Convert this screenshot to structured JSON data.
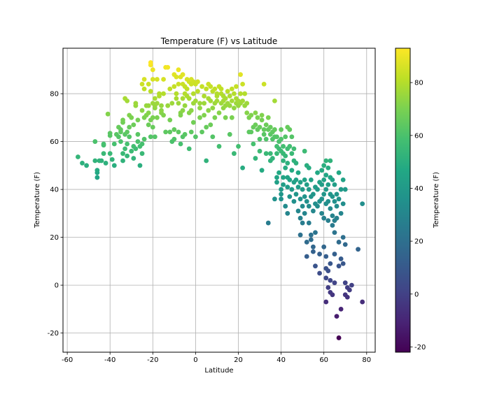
{
  "chart_data": {
    "type": "scatter",
    "title": "Temperature (F) vs Latitude",
    "xlabel": "Latitude",
    "ylabel": "Temperature (F)",
    "xlim": [
      -62,
      84
    ],
    "ylim": [
      -28,
      99
    ],
    "xticks": [
      -60,
      -40,
      -20,
      0,
      20,
      40,
      60,
      80
    ],
    "yticks": [
      -20,
      0,
      20,
      40,
      60,
      80
    ],
    "grid": true,
    "colormap": "viridis",
    "colorbar": {
      "label": "Temperature (F)",
      "range": [
        -22,
        93
      ],
      "ticks": [
        -20,
        0,
        20,
        40,
        60,
        80
      ]
    },
    "points": [
      [
        -55,
        53.6
      ],
      [
        -53,
        51
      ],
      [
        -51,
        50
      ],
      [
        -47,
        60
      ],
      [
        -47,
        52
      ],
      [
        -46,
        47
      ],
      [
        -46,
        45
      ],
      [
        -46,
        48
      ],
      [
        -45,
        52
      ],
      [
        -44,
        52
      ],
      [
        -43,
        55
      ],
      [
        -43,
        58.5
      ],
      [
        -43,
        59
      ],
      [
        -42,
        51
      ],
      [
        -41,
        71.5
      ],
      [
        -40,
        63.5
      ],
      [
        -40,
        62.5
      ],
      [
        -40,
        55
      ],
      [
        -39,
        52.5
      ],
      [
        -38,
        50
      ],
      [
        -38,
        59
      ],
      [
        -37,
        63
      ],
      [
        -36,
        62
      ],
      [
        -36,
        66
      ],
      [
        -35,
        65
      ],
      [
        -35,
        60
      ],
      [
        -35,
        64
      ],
      [
        -34,
        68
      ],
      [
        -34,
        69
      ],
      [
        -34,
        55
      ],
      [
        -34,
        52
      ],
      [
        -33,
        78
      ],
      [
        -33,
        57
      ],
      [
        -33,
        63
      ],
      [
        -32,
        64
      ],
      [
        -32,
        59
      ],
      [
        -32,
        54
      ],
      [
        -32,
        77
      ],
      [
        -31,
        66
      ],
      [
        -31,
        71
      ],
      [
        -31,
        62
      ],
      [
        -30,
        56
      ],
      [
        -30,
        70
      ],
      [
        -29,
        67
      ],
      [
        -29,
        58
      ],
      [
        -29,
        53
      ],
      [
        -28,
        75
      ],
      [
        -28,
        76
      ],
      [
        -28,
        57
      ],
      [
        -27,
        69
      ],
      [
        -27,
        63
      ],
      [
        -27,
        60
      ],
      [
        -26,
        58
      ],
      [
        -26,
        50
      ],
      [
        -25,
        73
      ],
      [
        -25,
        84
      ],
      [
        -25,
        55
      ],
      [
        -25,
        59
      ],
      [
        -24,
        70
      ],
      [
        -24,
        82
      ],
      [
        -24,
        86
      ],
      [
        -24,
        61
      ],
      [
        -23,
        71
      ],
      [
        -23,
        75
      ],
      [
        -22,
        75
      ],
      [
        -22,
        67
      ],
      [
        -22,
        84
      ],
      [
        -22,
        72
      ],
      [
        -21,
        92
      ],
      [
        -21,
        93
      ],
      [
        -21,
        81
      ],
      [
        -21,
        62
      ],
      [
        -21,
        69
      ],
      [
        -20,
        90
      ],
      [
        -20,
        86
      ],
      [
        -20,
        76
      ],
      [
        -20,
        66
      ],
      [
        -20,
        70
      ],
      [
        -19,
        74
      ],
      [
        -19,
        75
      ],
      [
        -19,
        78
      ],
      [
        -19,
        62
      ],
      [
        -18,
        86
      ],
      [
        -18,
        70
      ],
      [
        -18,
        76
      ],
      [
        -17,
        79
      ],
      [
        -17,
        80
      ],
      [
        -16,
        72
      ],
      [
        -16,
        73
      ],
      [
        -16,
        75
      ],
      [
        -15,
        80
      ],
      [
        -15,
        71
      ],
      [
        -15,
        86
      ],
      [
        -14,
        91
      ],
      [
        -14,
        64
      ],
      [
        -13,
        91
      ],
      [
        -13,
        75
      ],
      [
        -12,
        82
      ],
      [
        -12,
        69
      ],
      [
        -12,
        64
      ],
      [
        -11,
        76
      ],
      [
        -11,
        60
      ],
      [
        -10,
        83
      ],
      [
        -10,
        88
      ],
      [
        -10,
        65
      ],
      [
        -10,
        61
      ],
      [
        -9,
        78
      ],
      [
        -9,
        87
      ],
      [
        -9,
        80
      ],
      [
        -8,
        90
      ],
      [
        -8,
        76
      ],
      [
        -8,
        84
      ],
      [
        -8,
        64
      ],
      [
        -7,
        72
      ],
      [
        -7,
        71
      ],
      [
        -7,
        87
      ],
      [
        -7,
        59
      ],
      [
        -6,
        78
      ],
      [
        -6,
        88
      ],
      [
        -6,
        84
      ],
      [
        -6,
        73
      ],
      [
        -6,
        62
      ],
      [
        -5,
        83
      ],
      [
        -5,
        75
      ],
      [
        -5,
        80
      ],
      [
        -5,
        63
      ],
      [
        -4,
        86
      ],
      [
        -4,
        79
      ],
      [
        -4,
        82
      ],
      [
        -3,
        85
      ],
      [
        -3,
        72
      ],
      [
        -3,
        78
      ],
      [
        -3,
        57
      ],
      [
        -2,
        86
      ],
      [
        -2,
        84
      ],
      [
        -2,
        73
      ],
      [
        -2,
        64
      ],
      [
        -1,
        85
      ],
      [
        -1,
        80
      ],
      [
        -1,
        76
      ],
      [
        -1,
        68
      ],
      [
        0,
        84
      ],
      [
        0,
        77
      ],
      [
        0,
        62
      ],
      [
        1,
        81
      ],
      [
        1,
        85
      ],
      [
        2,
        76
      ],
      [
        2,
        74
      ],
      [
        2,
        70
      ],
      [
        3,
        83
      ],
      [
        3,
        64
      ],
      [
        4,
        79
      ],
      [
        4,
        76
      ],
      [
        4,
        71
      ],
      [
        5,
        52
      ],
      [
        5,
        66
      ],
      [
        5,
        82
      ],
      [
        6,
        84
      ],
      [
        6,
        78
      ],
      [
        6,
        73
      ],
      [
        7,
        83
      ],
      [
        7,
        77
      ],
      [
        7,
        67
      ],
      [
        8,
        81
      ],
      [
        8,
        74
      ],
      [
        8,
        62
      ],
      [
        9,
        82
      ],
      [
        9,
        76
      ],
      [
        9,
        70
      ],
      [
        10,
        80
      ],
      [
        10,
        77
      ],
      [
        10,
        79
      ],
      [
        11,
        83
      ],
      [
        11,
        72
      ],
      [
        11,
        58
      ],
      [
        12,
        82
      ],
      [
        12,
        76
      ],
      [
        12,
        80
      ],
      [
        13,
        79
      ],
      [
        13,
        77
      ],
      [
        13,
        74
      ],
      [
        14,
        78
      ],
      [
        14,
        75
      ],
      [
        14,
        70
      ],
      [
        15,
        76
      ],
      [
        15,
        81
      ],
      [
        16,
        75
      ],
      [
        16,
        79
      ],
      [
        16,
        63
      ],
      [
        17,
        82
      ],
      [
        17,
        77
      ],
      [
        17,
        70
      ],
      [
        18,
        80
      ],
      [
        18,
        74
      ],
      [
        18,
        55
      ],
      [
        19,
        78
      ],
      [
        19,
        76
      ],
      [
        19,
        83
      ],
      [
        20,
        77
      ],
      [
        20,
        75
      ],
      [
        20,
        58
      ],
      [
        21,
        88
      ],
      [
        21,
        80
      ],
      [
        21,
        76
      ],
      [
        22,
        84
      ],
      [
        22,
        77
      ],
      [
        22,
        49
      ],
      [
        23,
        80
      ],
      [
        23,
        75
      ],
      [
        24,
        76
      ],
      [
        24,
        72
      ],
      [
        25,
        64
      ],
      [
        25,
        70
      ],
      [
        26,
        71
      ],
      [
        26,
        64
      ],
      [
        27,
        66
      ],
      [
        27,
        59
      ],
      [
        28,
        72
      ],
      [
        28,
        67
      ],
      [
        28,
        53
      ],
      [
        29,
        65
      ],
      [
        29,
        70
      ],
      [
        30,
        66
      ],
      [
        30,
        61
      ],
      [
        30,
        56
      ],
      [
        31,
        71
      ],
      [
        31,
        69
      ],
      [
        31,
        48
      ],
      [
        32,
        84
      ],
      [
        32,
        63
      ],
      [
        32,
        65
      ],
      [
        33,
        61
      ],
      [
        33,
        55
      ],
      [
        33,
        67
      ],
      [
        34,
        70
      ],
      [
        34,
        65
      ],
      [
        34,
        26
      ],
      [
        35,
        66
      ],
      [
        35,
        63
      ],
      [
        35,
        55
      ],
      [
        35,
        52
      ],
      [
        36,
        64
      ],
      [
        36,
        61
      ],
      [
        36,
        53
      ],
      [
        37,
        65
      ],
      [
        37,
        62
      ],
      [
        37,
        77
      ],
      [
        37,
        36
      ],
      [
        38,
        62
      ],
      [
        38,
        58
      ],
      [
        38,
        55
      ],
      [
        38,
        45
      ],
      [
        38,
        43
      ],
      [
        39,
        57
      ],
      [
        39,
        60
      ],
      [
        39,
        47
      ],
      [
        40,
        65
      ],
      [
        40,
        61
      ],
      [
        40,
        56
      ],
      [
        40,
        40
      ],
      [
        40,
        38
      ],
      [
        40,
        36
      ],
      [
        41,
        58
      ],
      [
        41,
        55
      ],
      [
        41,
        52
      ],
      [
        41,
        45
      ],
      [
        41,
        42
      ],
      [
        42,
        62
      ],
      [
        42,
        54
      ],
      [
        42,
        49
      ],
      [
        42,
        33
      ],
      [
        43,
        66
      ],
      [
        43,
        57
      ],
      [
        43,
        51
      ],
      [
        43,
        45
      ],
      [
        43,
        41
      ],
      [
        43,
        30
      ],
      [
        44,
        65
      ],
      [
        44,
        58
      ],
      [
        44,
        44
      ],
      [
        44,
        37
      ],
      [
        45,
        62
      ],
      [
        45,
        55
      ],
      [
        45,
        48
      ],
      [
        45,
        40
      ],
      [
        46,
        57
      ],
      [
        46,
        52
      ],
      [
        46,
        43
      ],
      [
        46,
        35
      ],
      [
        47,
        51
      ],
      [
        47,
        44
      ],
      [
        47,
        38
      ],
      [
        48,
        47
      ],
      [
        48,
        41
      ],
      [
        48,
        31
      ],
      [
        49,
        43
      ],
      [
        49,
        36
      ],
      [
        49,
        28
      ],
      [
        49,
        21
      ],
      [
        50,
        40
      ],
      [
        50,
        33
      ],
      [
        50,
        26
      ],
      [
        51,
        56
      ],
      [
        51,
        44
      ],
      [
        51,
        37
      ],
      [
        51,
        30
      ],
      [
        52,
        50
      ],
      [
        52,
        42
      ],
      [
        52,
        35
      ],
      [
        52,
        18
      ],
      [
        52,
        12
      ],
      [
        53,
        49
      ],
      [
        53,
        40
      ],
      [
        53,
        33
      ],
      [
        53,
        26
      ],
      [
        54,
        44
      ],
      [
        54,
        37
      ],
      [
        54,
        21
      ],
      [
        54,
        19
      ],
      [
        55,
        38
      ],
      [
        55,
        31
      ],
      [
        55,
        16
      ],
      [
        55,
        14
      ],
      [
        56,
        41
      ],
      [
        56,
        34
      ],
      [
        56,
        22
      ],
      [
        56,
        8
      ],
      [
        57,
        47
      ],
      [
        57,
        40
      ],
      [
        57,
        33
      ],
      [
        58,
        43
      ],
      [
        58,
        35
      ],
      [
        58,
        13
      ],
      [
        58,
        5
      ],
      [
        59,
        48
      ],
      [
        59,
        42
      ],
      [
        59,
        36
      ],
      [
        59,
        30
      ],
      [
        60,
        50
      ],
      [
        60,
        44
      ],
      [
        60,
        38
      ],
      [
        60,
        28
      ],
      [
        60,
        16
      ],
      [
        61,
        52
      ],
      [
        61,
        46
      ],
      [
        61,
        40
      ],
      [
        61,
        34
      ],
      [
        61,
        12
      ],
      [
        61,
        7
      ],
      [
        61,
        3
      ],
      [
        61,
        -7
      ],
      [
        62,
        49
      ],
      [
        62,
        42
      ],
      [
        62,
        35
      ],
      [
        62,
        27
      ],
      [
        62,
        6
      ],
      [
        62,
        -1
      ],
      [
        63,
        52
      ],
      [
        63,
        45
      ],
      [
        63,
        38
      ],
      [
        63,
        32
      ],
      [
        63,
        9
      ],
      [
        63,
        2
      ],
      [
        63,
        -3
      ],
      [
        64,
        44
      ],
      [
        64,
        37
      ],
      [
        64,
        29
      ],
      [
        64,
        25
      ],
      [
        64,
        -4
      ],
      [
        65,
        42
      ],
      [
        65,
        35
      ],
      [
        65,
        27
      ],
      [
        65,
        22
      ],
      [
        65,
        13
      ],
      [
        65,
        1
      ],
      [
        66,
        38
      ],
      [
        66,
        33
      ],
      [
        66,
        28
      ],
      [
        66,
        -13
      ],
      [
        67,
        47
      ],
      [
        67,
        36
      ],
      [
        67,
        18
      ],
      [
        67,
        8
      ],
      [
        67,
        -22
      ],
      [
        68,
        40
      ],
      [
        68,
        30
      ],
      [
        68,
        11
      ],
      [
        68,
        -10
      ],
      [
        69,
        44
      ],
      [
        69,
        34
      ],
      [
        69,
        20
      ],
      [
        69,
        9
      ],
      [
        70,
        40
      ],
      [
        70,
        17
      ],
      [
        70,
        1
      ],
      [
        70,
        -4
      ],
      [
        71,
        -1
      ],
      [
        71,
        -5
      ],
      [
        72,
        -2
      ],
      [
        73,
        0
      ],
      [
        78,
        34
      ],
      [
        78,
        -7
      ],
      [
        76,
        15
      ]
    ]
  }
}
